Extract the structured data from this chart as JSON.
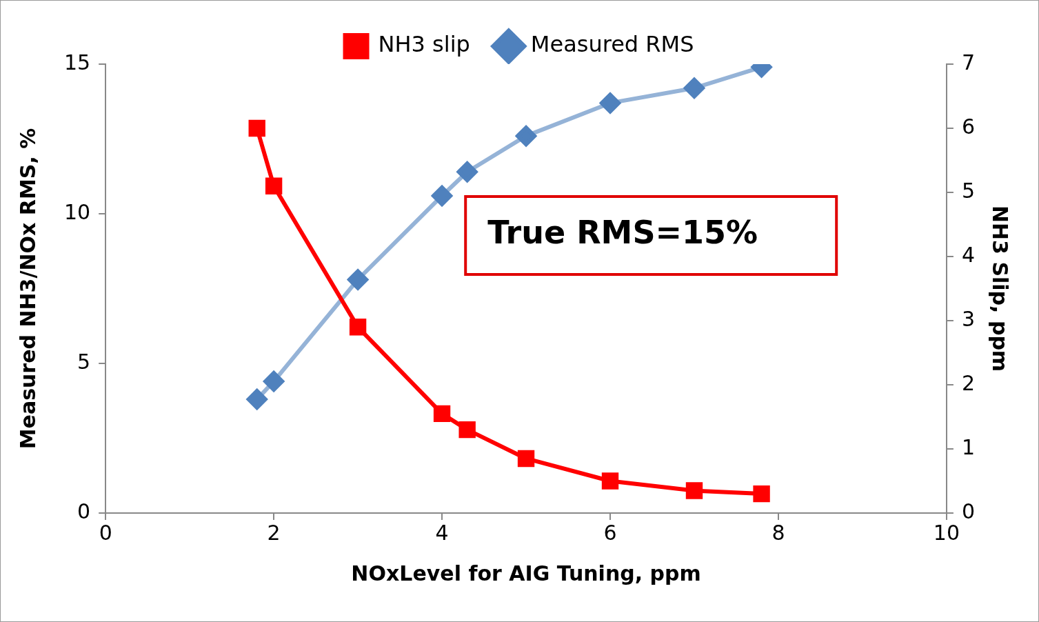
{
  "chart_data": {
    "type": "line",
    "xlabel": "NOxLevel for AIG Tuning, ppm",
    "ylabel": "Measured NH3/NOx RMS, %",
    "y2label": "NH3 Slip, ppm",
    "x": [
      1.8,
      2,
      3,
      4,
      4.3,
      5,
      6,
      7,
      7.8
    ],
    "series": [
      {
        "name": "Measured RMS",
        "color": "#95b3d7",
        "marker": "diamond",
        "values": [
          3.8,
          4.4,
          7.8,
          10.6,
          11.4,
          12.6,
          13.7,
          14.2,
          14.9
        ]
      },
      {
        "name": "NH3 slip",
        "color": "#ff0000",
        "marker": "square",
        "axis": "y2",
        "values": [
          6.0,
          5.1,
          2.9,
          1.55,
          1.3,
          0.85,
          0.5,
          0.35,
          0.3
        ]
      }
    ],
    "xlim": [
      0,
      10
    ],
    "xticks": [
      0,
      2,
      4,
      6,
      8,
      10
    ],
    "ylim": [
      0,
      15
    ],
    "yticks": [
      0,
      5,
      10,
      15
    ],
    "y2lim": [
      0,
      7
    ],
    "y2ticks": [
      0,
      1,
      2,
      3,
      4,
      5,
      6,
      7
    ],
    "annotations": [
      "True RMS=15%"
    ],
    "legend": "top",
    "grid": false,
    "line_style": "solid"
  }
}
